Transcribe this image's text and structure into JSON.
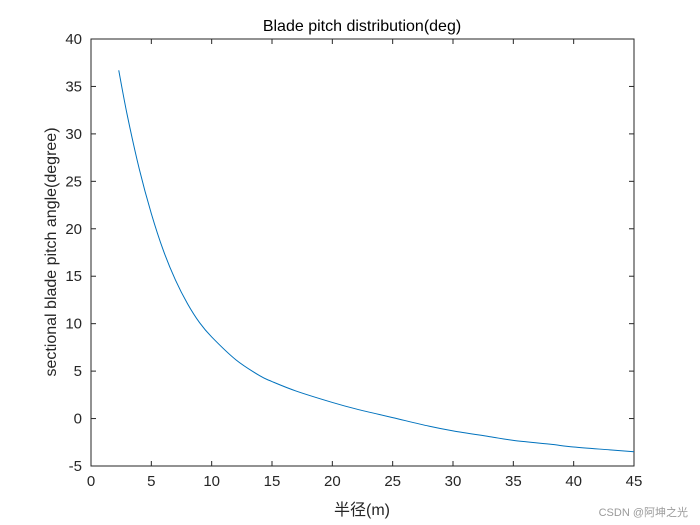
{
  "chart_data": {
    "type": "line",
    "title": "Blade pitch distribution(deg)",
    "xlabel": "半径(m)",
    "ylabel": "sectional blade pitch angle(degree)",
    "xlim": [
      0,
      45
    ],
    "ylim": [
      -5,
      40
    ],
    "xticks": [
      0,
      5,
      10,
      15,
      20,
      25,
      30,
      35,
      40,
      45
    ],
    "yticks": [
      -5,
      0,
      5,
      10,
      15,
      20,
      25,
      30,
      35,
      40
    ],
    "xtick_labels": [
      "0",
      "5",
      "10",
      "15",
      "20",
      "25",
      "30",
      "35",
      "40",
      "45"
    ],
    "ytick_labels": [
      "-5",
      "0",
      "5",
      "10",
      "15",
      "20",
      "25",
      "30",
      "35",
      "40"
    ],
    "grid": false,
    "series": [
      {
        "color": "#0072bd",
        "x": [
          2.3,
          3,
          4,
          5,
          6,
          7,
          8,
          9,
          10,
          12,
          14,
          15,
          17,
          20,
          22,
          25,
          28,
          30,
          33,
          35,
          38,
          40,
          43,
          45
        ],
        "y": [
          36.7,
          32,
          26.3,
          21.6,
          17.7,
          14.6,
          12.1,
          10.1,
          8.6,
          6.2,
          4.5,
          3.9,
          2.9,
          1.7,
          1,
          0.1,
          -0.8,
          -1.3,
          -1.9,
          -2.3,
          -2.7,
          -3,
          -3.3,
          -3.5
        ]
      }
    ]
  },
  "watermark": "CSDN @阿坤之光"
}
